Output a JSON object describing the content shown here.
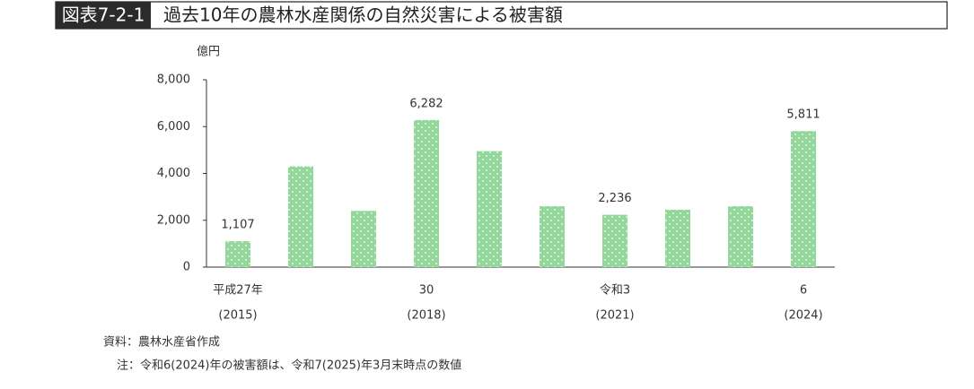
{
  "chart_data": {
    "type": "bar",
    "figure_label": "図表7-2-1",
    "title": "過去10年の農林水産関係の自然災害による被害額",
    "y_unit": "億円",
    "categories": [
      "平成27年",
      null,
      null,
      "30",
      null,
      null,
      "令和3",
      null,
      null,
      "6"
    ],
    "category_sublabels": [
      "(2015)",
      null,
      null,
      "(2018)",
      null,
      null,
      "(2021)",
      null,
      null,
      "(2024)"
    ],
    "values": [
      1107,
      4300,
      2400,
      6282,
      4950,
      2600,
      2236,
      2450,
      2600,
      5811
    ],
    "value_labels": [
      "1,107",
      null,
      null,
      "6,282",
      null,
      null,
      "2,236",
      null,
      null,
      "5,811"
    ],
    "color": "#93d89a",
    "ylim": [
      0,
      8000
    ],
    "yticks": [
      0,
      {
        "value": 2000,
        "label": "2,000"
      },
      {
        "value": 4000,
        "label": "4,000"
      },
      {
        "value": 6000,
        "label": "6,000"
      },
      {
        "value": 8000,
        "label": "8,000"
      }
    ],
    "source": "資料：農林水産省作成",
    "note": "注：令和6(2024)年の被害額は、令和7(2025)年3月末時点の数値"
  }
}
